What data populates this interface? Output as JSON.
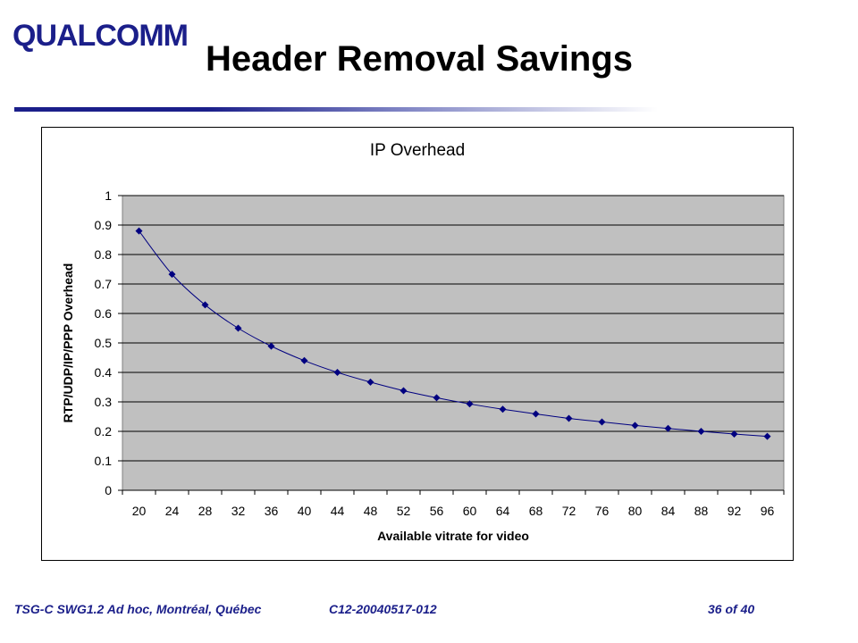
{
  "header": {
    "logo_text": "QUALCOMM",
    "title": "Header Removal Savings"
  },
  "footer": {
    "meeting": "TSG-C SWG1.2 Ad hoc, Montréal, Québec",
    "doc_id": "C12-20040517-012",
    "page": "36 of 40"
  },
  "colors": {
    "brand": "#1b1f8a",
    "plot_bg": "#c0c0c0",
    "series": "#000080"
  },
  "chart_data": {
    "type": "line",
    "title": "IP Overhead",
    "xlabel": "Available vitrate for video",
    "ylabel": "RTP/UDP/IP/PPP Overhead",
    "categories": [
      "20",
      "24",
      "28",
      "32",
      "36",
      "40",
      "44",
      "48",
      "52",
      "56",
      "60",
      "64",
      "68",
      "72",
      "76",
      "80",
      "84",
      "88",
      "92",
      "96"
    ],
    "yticks": [
      "0",
      "0.1",
      "0.2",
      "0.3",
      "0.4",
      "0.5",
      "0.6",
      "0.7",
      "0.8",
      "0.9",
      "1"
    ],
    "ylim": [
      0,
      1
    ],
    "grid": true,
    "series": [
      {
        "values": [
          0.88,
          0.733,
          0.629,
          0.55,
          0.489,
          0.44,
          0.4,
          0.367,
          0.338,
          0.314,
          0.293,
          0.275,
          0.259,
          0.244,
          0.232,
          0.22,
          0.21,
          0.2,
          0.191,
          0.183
        ]
      }
    ]
  }
}
